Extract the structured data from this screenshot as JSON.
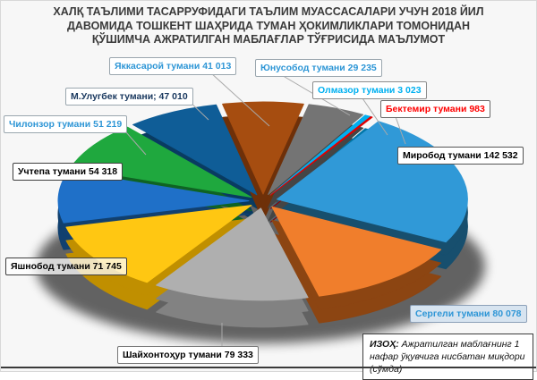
{
  "header": {
    "lines": [
      "ХАЛҚ ТАЪЛИМИ ТАСАРРУФИДАГИ ТАЪЛИМ МУАССАСАЛАРИ УЧУН 2018 ЙИЛ",
      "ДАВОМИДА ТОШКЕНТ ШАҲРИДА ТУМАН ҲОКИМЛИКЛАРИ ТОМОНИДАН",
      "ҚЎШИМЧА АЖРАТИЛГАН МАБЛАҒЛАР ТЎҒРИСИДА МАЪЛУМОТ"
    ]
  },
  "note": {
    "prefix": "ИЗОҲ:",
    "text": " Ажратилган маблағнинг 1 нафар ўқувчига нисбатан миқдори (сўмда)"
  },
  "chart_data": {
    "type": "pie",
    "title": "ХАЛҚ ТАЪЛИМИ ТАСАРРУФИДАГИ ТАЪЛИМ МУАССАСАЛАРИ УЧУН 2018 ЙИЛ ДАВОМИДА ТОШКЕНТ ШАҲРИДА ТУМАН ҲОКИМЛИКЛАРИ ТОМОНИДАН ҚЎШИМЧА АЖРАТИЛГАН МАБЛАҒЛАР ТЎҒРИСИДА МАЪЛУМОТ",
    "note": "ИЗОҲ: Ажратилган маблағнинг 1 нафар ўқувчига нисбатан миқдори (сўмда)",
    "style": "3d-exploded",
    "direction": "clockwise",
    "start_angle_deg": -102.3,
    "slices": [
      {
        "id": "yakkasaroy",
        "label": "Яккасарой тумани",
        "value": 41013,
        "display": "Яккасарой тумани 41 013",
        "color": "#A64D10",
        "side_color": "#6E3009",
        "label_color": "#2E96D6"
      },
      {
        "id": "yunusobod",
        "label": "Юнусобод тумани",
        "value": 29235,
        "display": "Юнусобод тумани 29 235",
        "color": "#747474",
        "side_color": "#454545",
        "label_color": "#2E96D6"
      },
      {
        "id": "olmazor",
        "label": "Олмазор тумани",
        "value": 3023,
        "display": "Олмазор тумани 3 023",
        "color": "#00AEEF",
        "side_color": "#0076A8",
        "label_color": "#00B0F0"
      },
      {
        "id": "bektemir",
        "label": "Бектемир тумани",
        "value": 983,
        "display": "Бектемир тумани 983",
        "color": "#DF0000",
        "side_color": "#8F0000",
        "label_color": "#FF0000"
      },
      {
        "id": "mirobod",
        "label": "Миробод тумани",
        "value": 142532,
        "display": "Миробод тумани 142 532",
        "color": "#3099D7",
        "side_color": "#174F6E",
        "label_color": "#000000"
      },
      {
        "id": "sergeli",
        "label": "Сергели тумани",
        "value": 80078,
        "display": "Сергели тумани 80 078",
        "color": "#F07E2C",
        "side_color": "#8C4512",
        "label_color": "#2E96D6"
      },
      {
        "id": "shayxontohur",
        "label": "Шайхонтоҳур тумани",
        "value": 79333,
        "display": "Шайхонтоҳур тумани 79 333",
        "color": "#AFAFAF",
        "side_color": "#828282",
        "label_color": "#000000"
      },
      {
        "id": "yashnobod",
        "label": "Яшнобод тумани",
        "value": 71745,
        "display": "Яшнобод тумани 71 745",
        "color": "#FFC712",
        "side_color": "#C08F00",
        "label_color": "#000000"
      },
      {
        "id": "uchtepa",
        "label": "Учтепа тумани",
        "value": 54318,
        "display": "Учтепа тумани 54 318",
        "color": "#1F70C8",
        "side_color": "#11406F",
        "label_color": "#000000"
      },
      {
        "id": "chilonzor",
        "label": "Чилонзор тумани",
        "value": 51219,
        "display": "Чилонзор тумани 51 219",
        "color": "#1FA83E",
        "side_color": "#0F6323",
        "label_color": "#2E96D6"
      },
      {
        "id": "mulugbek",
        "label": "М.Улугбек тумани",
        "value": 47010,
        "display": "М.Улугбек тумани; 47 010",
        "color": "#0F5D97",
        "side_color": "#093B61",
        "label_color": "#17365D"
      }
    ]
  }
}
